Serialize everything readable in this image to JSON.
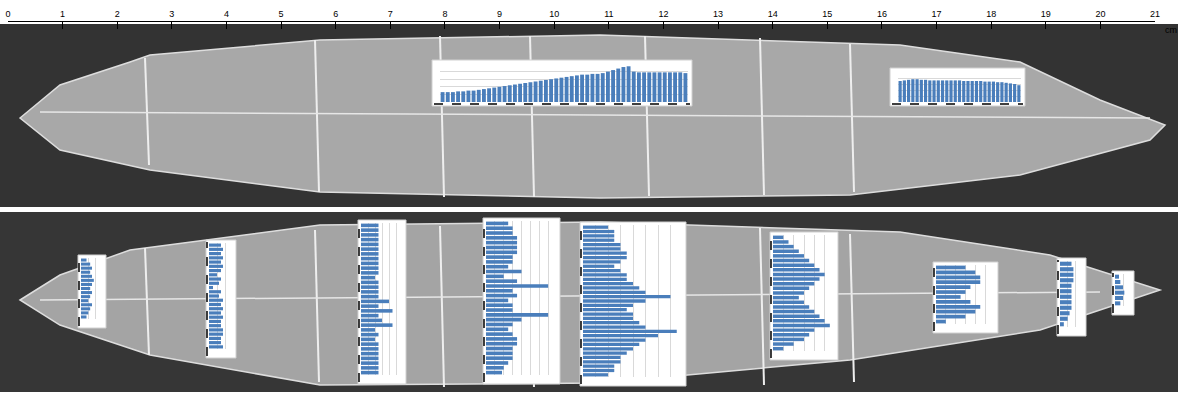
{
  "chart_data": [
    {
      "type": "scale",
      "x_label": "cm",
      "xlim": [
        0,
        21
      ],
      "xticks": [
        0,
        1,
        2,
        3,
        4,
        5,
        6,
        7,
        8,
        9,
        10,
        11,
        12,
        13,
        14,
        15,
        16,
        17,
        18,
        19,
        20,
        21
      ]
    },
    {
      "type": "bar",
      "color": "#4a7ebb",
      "grid": true,
      "tick_labels": false,
      "ylim": [
        0,
        5
      ],
      "yticks": [
        0,
        1,
        2,
        3,
        4,
        5
      ],
      "values": [
        1.3,
        1.3,
        1.3,
        1.4,
        1.4,
        1.5,
        1.5,
        1.6,
        1.7,
        1.8,
        1.9,
        2.0,
        2.1,
        2.2,
        2.3,
        2.4,
        2.5,
        2.6,
        2.7,
        2.8,
        2.9,
        3.0,
        3.1,
        3.2,
        3.3,
        3.4,
        3.5,
        3.6,
        3.6,
        3.7,
        3.7,
        3.8,
        4.0,
        4.2,
        4.4,
        4.6,
        4.7,
        4.0,
        3.9,
        3.9,
        3.9,
        3.9,
        3.9,
        3.9,
        3.9,
        3.9,
        3.9,
        3.8
      ]
    },
    {
      "type": "bar",
      "color": "#4a7ebb",
      "grid": true,
      "tick_labels": false,
      "ylim": [
        0,
        5
      ],
      "yticks": [
        0,
        1,
        2,
        3,
        4,
        5
      ],
      "values": [
        3.5,
        3.6,
        3.7,
        3.8,
        3.8,
        3.7,
        3.7,
        3.6,
        3.6,
        3.6,
        3.6,
        3.6,
        3.6,
        3.6,
        3.6,
        3.5,
        3.5,
        3.5,
        3.5,
        3.5,
        3.4,
        3.4,
        3.4,
        3.3,
        3.3,
        3.2,
        3.1,
        3.0,
        2.8
      ]
    },
    {
      "type": "bar",
      "orientation": "horizontal",
      "color": "#4a7ebb",
      "grid": true,
      "tick_labels": false,
      "xlim": [
        0,
        6
      ],
      "xticks": [
        0,
        2,
        4,
        6
      ],
      "values": [
        1.5,
        2.5,
        3,
        2.5,
        3,
        3.5,
        3,
        2.5,
        3,
        2.5,
        2,
        3,
        2.5,
        2,
        1.5
      ]
    },
    {
      "type": "bar",
      "orientation": "horizontal",
      "color": "#4a7ebb",
      "grid": true,
      "tick_labels": false,
      "xlim": [
        0,
        6
      ],
      "xticks": [
        0,
        2,
        4,
        6
      ],
      "values": [
        3,
        3.5,
        3,
        3.5,
        3,
        3.5,
        3,
        2,
        3,
        2.5,
        1,
        3,
        2.5,
        3.5,
        3,
        3.5,
        3,
        3.5,
        3,
        3,
        3.5,
        3.5,
        3,
        3,
        3.5
      ]
    },
    {
      "type": "bar",
      "orientation": "horizontal",
      "color": "#4a7ebb",
      "grid": true,
      "tick_labels": false,
      "xlim": [
        0,
        6
      ],
      "xticks": [
        0,
        1,
        2,
        3,
        4,
        5,
        6
      ],
      "values": [
        2.5,
        2.5,
        2.5,
        2.5,
        2.5,
        2.5,
        2.5,
        2.5,
        2.5,
        2.5,
        2.5,
        2,
        2.5,
        2.5,
        2.5,
        2.5,
        4,
        2.5,
        4.5,
        2.5,
        3,
        4.5,
        2,
        2.5,
        2,
        2.5,
        2.5,
        2.5,
        2.5,
        2.5,
        2.5,
        2.5
      ]
    },
    {
      "type": "bar",
      "orientation": "horizontal",
      "color": "#4a7ebb",
      "grid": true,
      "tick_labels": false,
      "xlim": [
        0,
        8
      ],
      "xticks": [
        0,
        1,
        2,
        3,
        4,
        5,
        6,
        7,
        8
      ],
      "values": [
        2.5,
        3,
        3,
        3.5,
        3.5,
        3.5,
        3.5,
        3,
        3,
        2.5,
        4,
        2,
        3.5,
        7,
        3,
        3.5,
        2.5,
        3,
        3,
        7,
        4,
        3,
        2.5,
        3,
        3.5,
        3.5,
        3,
        3,
        3,
        2.5,
        2,
        1.8
      ]
    },
    {
      "type": "bar",
      "orientation": "horizontal",
      "color": "#4a7ebb",
      "grid": true,
      "tick_labels": false,
      "xlim": [
        0,
        8
      ],
      "xticks": [
        0,
        1,
        2,
        3,
        4,
        5,
        6,
        7,
        8
      ],
      "values": [
        2,
        2.5,
        2.5,
        2.5,
        3,
        3,
        3.5,
        3.5,
        3,
        2.5,
        3,
        3.5,
        3.5,
        4,
        4.5,
        5,
        7,
        5,
        4,
        3.5,
        4,
        4,
        4.5,
        5,
        7.5,
        6,
        5,
        4.5,
        4,
        3.5,
        3,
        3,
        2.5,
        2.5,
        2
      ]
    },
    {
      "type": "bar",
      "orientation": "horizontal",
      "color": "#4a7ebb",
      "grid": true,
      "tick_labels": false,
      "xlim": [
        0,
        6
      ],
      "xticks": [
        0,
        1,
        2,
        3,
        4,
        5,
        6
      ],
      "values": [
        1,
        1.5,
        2,
        2.5,
        3,
        3.5,
        4,
        4.5,
        5,
        4.5,
        4,
        3.5,
        3,
        2.5,
        3,
        3.5,
        4,
        4.5,
        5,
        5.5,
        4,
        3.5,
        3,
        2,
        1
      ]
    },
    {
      "type": "bar",
      "orientation": "horizontal",
      "color": "#4a7ebb",
      "grid": true,
      "tick_labels": false,
      "xlim": [
        0,
        6
      ],
      "xticks": [
        0,
        1,
        2,
        3,
        4,
        5,
        6
      ],
      "values": [
        3,
        4,
        4.5,
        4.5,
        3.5,
        3,
        2.5,
        3.5,
        4.5,
        4,
        3,
        1
      ]
    },
    {
      "type": "bar",
      "orientation": "horizontal",
      "color": "#4a7ebb",
      "grid": true,
      "tick_labels": false,
      "xlim": [
        0,
        6
      ],
      "xticks": [
        0,
        2,
        4,
        6
      ],
      "values": [
        3,
        3.5,
        3.5,
        3.5,
        3,
        3,
        3,
        3,
        3,
        2.5,
        2,
        1
      ]
    },
    {
      "type": "bar",
      "orientation": "horizontal",
      "color": "#4a7ebb",
      "grid": true,
      "tick_labels": false,
      "xlim": [
        0,
        6
      ],
      "xticks": [
        0,
        3,
        6
      ],
      "values": [
        1.5,
        2,
        3,
        3.5,
        3,
        2
      ]
    }
  ]
}
